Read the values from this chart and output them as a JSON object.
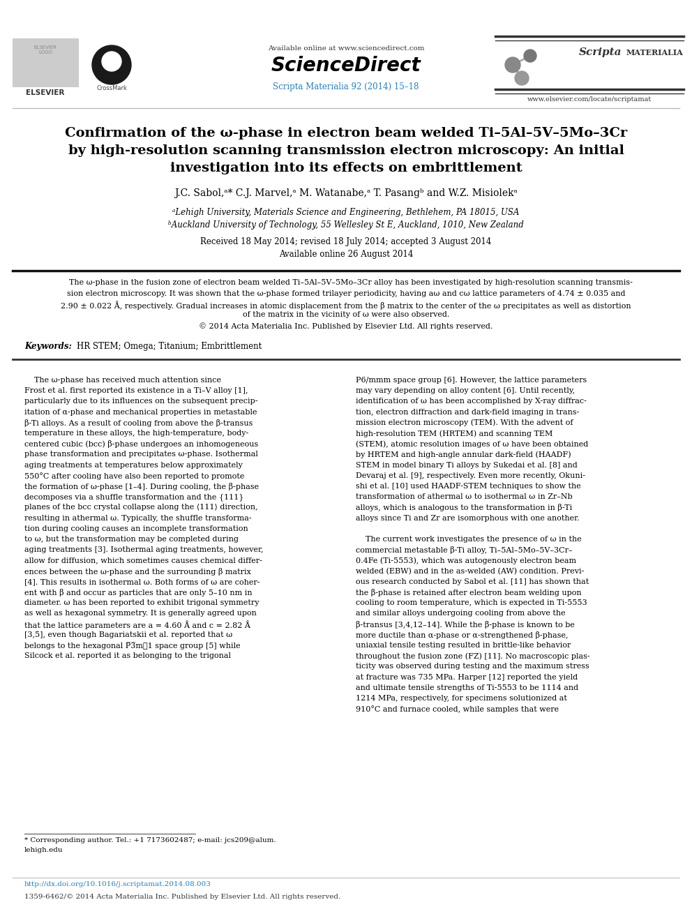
{
  "page_width": 9.92,
  "page_height": 13.23,
  "dpi": 100,
  "background_color": "#ffffff",
  "header_available": "Available online at www.sciencedirect.com",
  "header_sd": "ScienceDirect",
  "header_journal": "Scripta Materialia 92 (2014) 15–18",
  "header_journal_color": "#2980b9",
  "header_scripta": "Scripta",
  "header_materialia": "MATERIALIA",
  "header_website": "www.elsevier.com/locate/scriptamat",
  "header_elsevier": "ELSEVIER",
  "title_line1": "Confirmation of the ω-phase in electron beam welded Ti–5Al–5V–5Mo–3Cr",
  "title_line2": "by high-resolution scanning transmission electron microscopy: An initial",
  "title_line3": "investigation into its effects on embrittlement",
  "authors": "J.C. Sabol,ᵃ* C.J. Marvel,ᵃ M. Watanabe,ᵃ T. Pasangᵇ and W.Z. Misiolekᵃ",
  "affil_a": "ᵃLehigh University, Materials Science and Engineering, Bethlehem, PA 18015, USA",
  "affil_b": "ᵇAuckland University of Technology, 55 Wellesley St E, Auckland, 1010, New Zealand",
  "dates1": "Received 18 May 2014; revised 18 July 2014; accepted 3 August 2014",
  "dates2": "Available online 26 August 2014",
  "abstract_l1": "    The ω-phase in the fusion zone of electron beam welded Ti–5Al–5V–5Mo–3Cr alloy has been investigated by high-resolution scanning transmis-",
  "abstract_l2": "sion electron microscopy. It was shown that the ω-phase formed trilayer periodicity, having aω and cω lattice parameters of 4.74 ± 0.035 and",
  "abstract_l3": "2.90 ± 0.022 Å, respectively. Gradual increases in atomic displacement from the β matrix to the center of the ω precipitates as well as distortion",
  "abstract_l4": "of the matrix in the vicinity of ω were also observed.",
  "abstract_l5": "© 2014 Acta Materialia Inc. Published by Elsevier Ltd. All rights reserved.",
  "kw_label": "Keywords: ",
  "kw_text": "HR STEM; Omega; Titanium; Embrittlement",
  "col1_lines": [
    "    The ω-phase has received much attention since",
    "Frost et al. first reported its existence in a Ti–V alloy [1],",
    "particularly due to its influences on the subsequent precip-",
    "itation of α-phase and mechanical properties in metastable",
    "β-Ti alloys. As a result of cooling from above the β-transus",
    "temperature in these alloys, the high-temperature, body-",
    "centered cubic (bcc) β-phase undergoes an inhomogeneous",
    "phase transformation and precipitates ω-phase. Isothermal",
    "aging treatments at temperatures below approximately",
    "550°C after cooling have also been reported to promote",
    "the formation of ω-phase [1–4]. During cooling, the β-phase",
    "decomposes via a shuffle transformation and the {111}",
    "planes of the bcc crystal collapse along the ⟨111⟩ direction,",
    "resulting in athermal ω. Typically, the shuffle transforma-",
    "tion during cooling causes an incomplete transformation",
    "to ω, but the transformation may be completed during",
    "aging treatments [3]. Isothermal aging treatments, however,",
    "allow for diffusion, which sometimes causes chemical differ-",
    "ences between the ω-phase and the surrounding β matrix",
    "[4]. This results in isothermal ω. Both forms of ω are coher-",
    "ent with β and occur as particles that are only 5–10 nm in",
    "diameter. ω has been reported to exhibit trigonal symmetry",
    "as well as hexagonal symmetry. It is generally agreed upon",
    "that the lattice parameters are a = 4.60 Å and c = 2.82 Å",
    "[3,5], even though Bagariatskii et al. reported that ω",
    "belongs to the hexagonal P̅3̅m\u00031 space group [5] while",
    "Silcock et al. reported it as belonging to the trigonal"
  ],
  "col2_lines": [
    "P6/mmm space group [6]. However, the lattice parameters",
    "may vary depending on alloy content [6]. Until recently,",
    "identification of ω has been accomplished by X-ray diffrac-",
    "tion, electron diffraction and dark-field imaging in trans-",
    "mission electron microscopy (TEM). With the advent of",
    "high-resolution TEM (HRTEM) and scanning TEM",
    "(STEM), atomic resolution images of ω have been obtained",
    "by HRTEM and high-angle annular dark-field (HAADF)",
    "STEM in model binary Ti alloys by Sukedai et al. [8] and",
    "Devaraj et al. [9], respectively. Even more recently, Okuni-",
    "shi et al. [10] used HAADF-STEM techniques to show the",
    "transformation of athermal ω to isothermal ω in Zr–Nb",
    "alloys, which is analogous to the transformation in β-Ti",
    "alloys since Ti and Zr are isomorphous with one another.",
    "",
    "    The current work investigates the presence of ω in the",
    "commercial metastable β-Ti alloy, Ti–5Al–5Mo–5V–3Cr–",
    "0.4Fe (Ti-5553), which was autogenously electron beam",
    "welded (EBW) and in the as-welded (AW) condition. Previ-",
    "ous research conducted by Sabol et al. [11] has shown that",
    "the β-phase is retained after electron beam welding upon",
    "cooling to room temperature, which is expected in Ti-5553",
    "and similar alloys undergoing cooling from above the",
    "β-transus [3,4,12–14]. While the β-phase is known to be",
    "more ductile than α-phase or α-strengthened β-phase,",
    "uniaxial tensile testing resulted in brittle-like behavior",
    "throughout the fusion zone (FZ) [11]. No macroscopic plas-",
    "ticity was observed during testing and the maximum stress",
    "at fracture was 735 MPa. Harper [12] reported the yield",
    "and ultimate tensile strengths of Ti-5553 to be 1114 and",
    "1214 MPa, respectively, for specimens solutionized at",
    "910°C and furnace cooled, while samples that were"
  ],
  "footnote": "* Corresponding author. Tel.: +1 7173602487; e-mail: jcs209@alum.",
  "footnote2": "lehigh.edu",
  "doi": "http://dx.doi.org/10.1016/j.scriptamat.2014.08.003",
  "doi_color": "#2980b9",
  "copyright": "1359-6462/© 2014 Acta Materialia Inc. Published by Elsevier Ltd. All rights reserved."
}
